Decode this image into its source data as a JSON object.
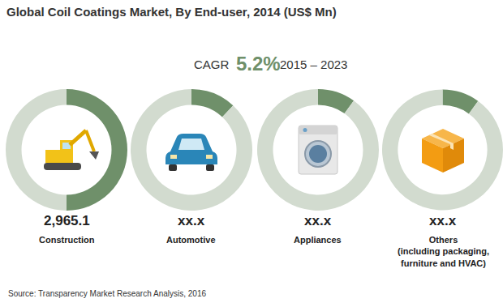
{
  "chart_data": {
    "type": "pie",
    "title": "Global Coil Coatings Market, By End-user, 2014 (US$ Mn)",
    "subtitle": {
      "label": "CAGR",
      "value": "5.2%",
      "period": "2015 – 2023"
    },
    "categories": [
      "Construction",
      "Automotive",
      "Appliances",
      "Others\n(including packaging,\nfurniture and HVAC)"
    ],
    "values": [
      2965.1,
      null,
      null,
      null
    ],
    "value_labels": [
      "2,965.1",
      "xx.x",
      "xx.x",
      "xx.x"
    ],
    "ring_shares": [
      50,
      12,
      10,
      10
    ],
    "color": "#6f906a",
    "ring_color": "#d2dbcf",
    "value_color": "#6f906a",
    "source": "Source: Transparency Market Research Analysis, 2016"
  }
}
